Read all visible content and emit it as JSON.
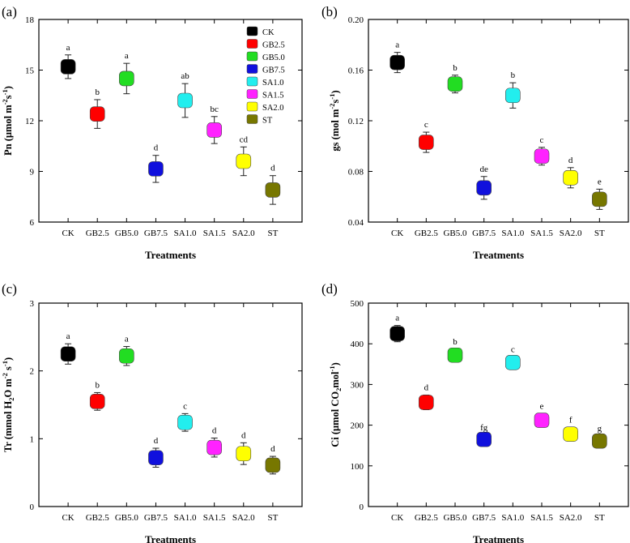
{
  "figure": {
    "categories": [
      "CK",
      "GB2.5",
      "GB5.0",
      "GB7.5",
      "SA1.0",
      "SA1.5",
      "SA2.0",
      "ST"
    ],
    "colors": [
      "#000000",
      "#ff0000",
      "#22dd22",
      "#1010dd",
      "#22eeee",
      "#ff22ff",
      "#ffff00",
      "#777700"
    ],
    "legend": [
      "CK",
      "GB2.5",
      "GB5.0",
      "GB7.5",
      "SA1.0",
      "SA1.5",
      "SA2.0",
      "ST"
    ],
    "legend_placement": "top-right of panel (a)"
  },
  "chart_data": [
    {
      "panel": "(a)",
      "type": "scatter",
      "ylabel_main": "Pn (μmol m",
      "ylabel_sup1": "-2",
      "ylabel_mid": "s",
      "ylabel_sup2": "-1",
      "ylabel_end": ")",
      "xlabel": "Treatments",
      "ylim": [
        6,
        18
      ],
      "yticks": [
        6,
        9,
        12,
        15,
        18
      ],
      "ytick_labels": [
        "6",
        "9",
        "12",
        "15",
        "18"
      ],
      "values": [
        15.2,
        12.4,
        14.5,
        9.15,
        13.2,
        11.45,
        9.6,
        7.9
      ],
      "errors": [
        0.7,
        0.85,
        0.9,
        0.8,
        1.0,
        0.8,
        0.85,
        0.85
      ],
      "letters": [
        "a",
        "b",
        "a",
        "d",
        "ab",
        "bc",
        "cd",
        "d"
      ]
    },
    {
      "panel": "(b)",
      "type": "scatter",
      "ylabel_main": "gs (mol m",
      "ylabel_sup1": "-2",
      "ylabel_mid": "s",
      "ylabel_sup2": "-1",
      "ylabel_end": ")",
      "xlabel": "Treatments",
      "ylim": [
        0.04,
        0.2
      ],
      "yticks": [
        0.04,
        0.08,
        0.12,
        0.16,
        0.2
      ],
      "ytick_labels": [
        "0.04",
        "0.08",
        "0.12",
        "0.16",
        "0.20"
      ],
      "values": [
        0.166,
        0.103,
        0.149,
        0.067,
        0.14,
        0.092,
        0.075,
        0.058
      ],
      "errors": [
        0.008,
        0.008,
        0.007,
        0.009,
        0.01,
        0.007,
        0.008,
        0.008
      ],
      "letters": [
        "a",
        "c",
        "b",
        "de",
        "b",
        "c",
        "d",
        "e"
      ]
    },
    {
      "panel": "(c)",
      "type": "scatter",
      "ylabel_main": "Tr (mmol H",
      "ylabel_sub": "2",
      "ylabel_mid": "O m",
      "ylabel_sup1": "-2",
      "ylabel_mid2": " s",
      "ylabel_sup2": "-1",
      "ylabel_end": ")",
      "xlabel": "Treatments",
      "ylim": [
        0,
        3
      ],
      "yticks": [
        0,
        1,
        2,
        3
      ],
      "ytick_labels": [
        "0",
        "1",
        "2",
        "3"
      ],
      "values": [
        2.25,
        1.55,
        2.22,
        0.72,
        1.24,
        0.87,
        0.78,
        0.61
      ],
      "errors": [
        0.15,
        0.13,
        0.14,
        0.14,
        0.13,
        0.14,
        0.16,
        0.13
      ],
      "letters": [
        "a",
        "b",
        "a",
        "d",
        "c",
        "d",
        "d",
        "d"
      ]
    },
    {
      "panel": "(d)",
      "type": "scatter",
      "ylabel_main": "Ci (μmol CO",
      "ylabel_sub": "2",
      "ylabel_mid": "mol",
      "ylabel_sup2": "-1",
      "ylabel_end": ")",
      "xlabel": "Treatments",
      "ylim": [
        0,
        500
      ],
      "yticks": [
        0,
        100,
        200,
        300,
        400,
        500
      ],
      "ytick_labels": [
        "0",
        "100",
        "200",
        "300",
        "400",
        "500"
      ],
      "values": [
        425,
        256,
        372,
        165,
        354,
        212,
        178,
        161
      ],
      "errors": [
        20,
        18,
        14,
        10,
        14,
        16,
        16,
        12
      ],
      "letters": [
        "a",
        "d",
        "b",
        "fg",
        "c",
        "e",
        "f",
        "g"
      ]
    }
  ]
}
